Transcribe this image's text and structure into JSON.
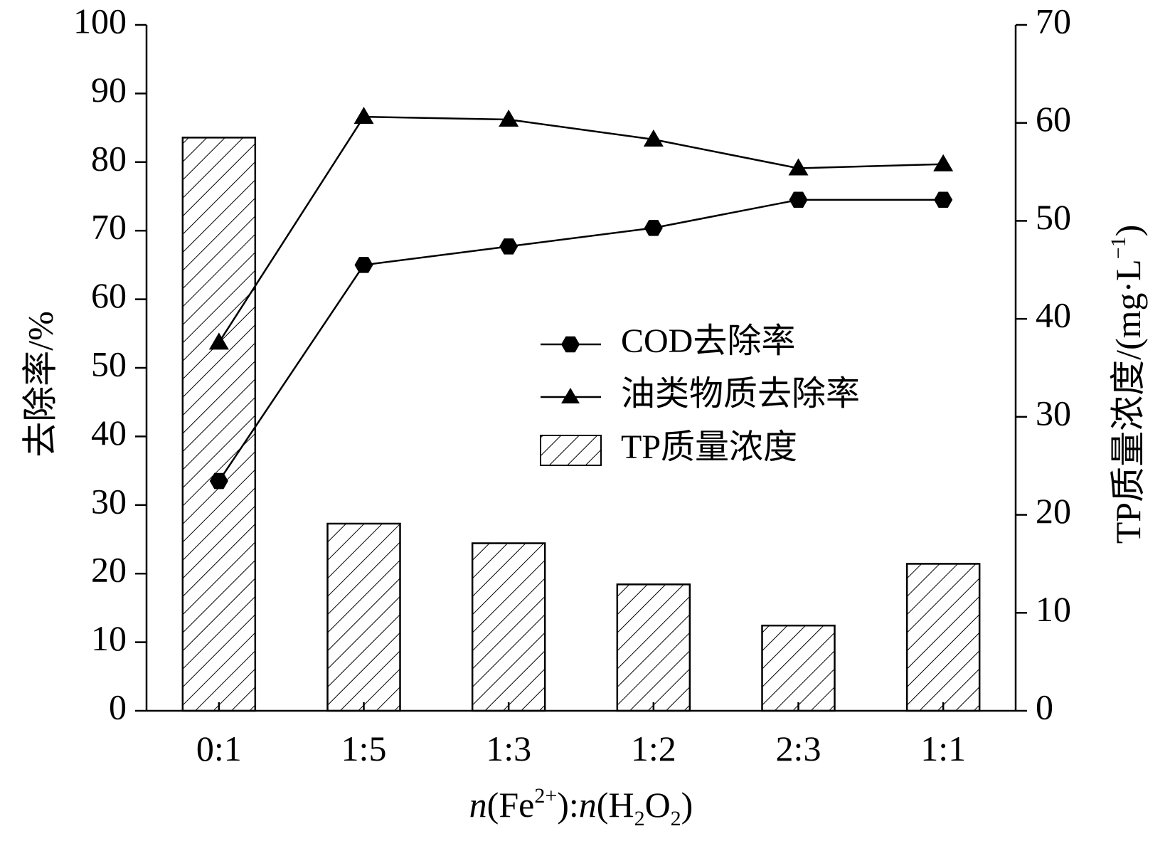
{
  "chart_data": {
    "type": "bar+line",
    "categories": [
      "0:1",
      "1:5",
      "1:3",
      "1:2",
      "2:3",
      "1:1"
    ],
    "xlabel": {
      "n1": "n",
      "fe": "(Fe",
      "fe_sup": "2+",
      "sep": "):",
      "n2": "n",
      "h": "(H",
      "h_sub": "2",
      "o": "O",
      "o_sub": "2",
      "close": ")"
    },
    "ylabel_left": "去除率/%",
    "ylabel_right": {
      "main": "TP质量浓度/(mg·L",
      "sup": "−1",
      "close": ")"
    },
    "ylim_left": [
      0,
      100
    ],
    "yticks_left": [
      0,
      10,
      20,
      30,
      40,
      50,
      60,
      70,
      80,
      90,
      100
    ],
    "ylim_right": [
      0,
      70
    ],
    "yticks_right": [
      0,
      10,
      20,
      30,
      40,
      50,
      60,
      70
    ],
    "series": [
      {
        "name": "COD去除率",
        "kind": "line",
        "axis": "left",
        "marker": "hexagon",
        "values": [
          33.5,
          65.0,
          67.7,
          70.4,
          74.5,
          74.5
        ]
      },
      {
        "name": "油类物质去除率",
        "kind": "line",
        "axis": "left",
        "marker": "triangle",
        "values": [
          53.7,
          86.6,
          86.2,
          83.3,
          79.1,
          79.7
        ]
      },
      {
        "name": "TP质量浓度",
        "kind": "bar",
        "axis": "right",
        "pattern": "diagonal-hatch",
        "values": [
          58.5,
          19.1,
          17.1,
          12.9,
          8.7,
          15.0
        ]
      }
    ],
    "legend_position": "center-right",
    "grid": false,
    "colors": {
      "line": "#000000",
      "bar_fill": "#ffffff",
      "hatch": "#000000"
    }
  }
}
